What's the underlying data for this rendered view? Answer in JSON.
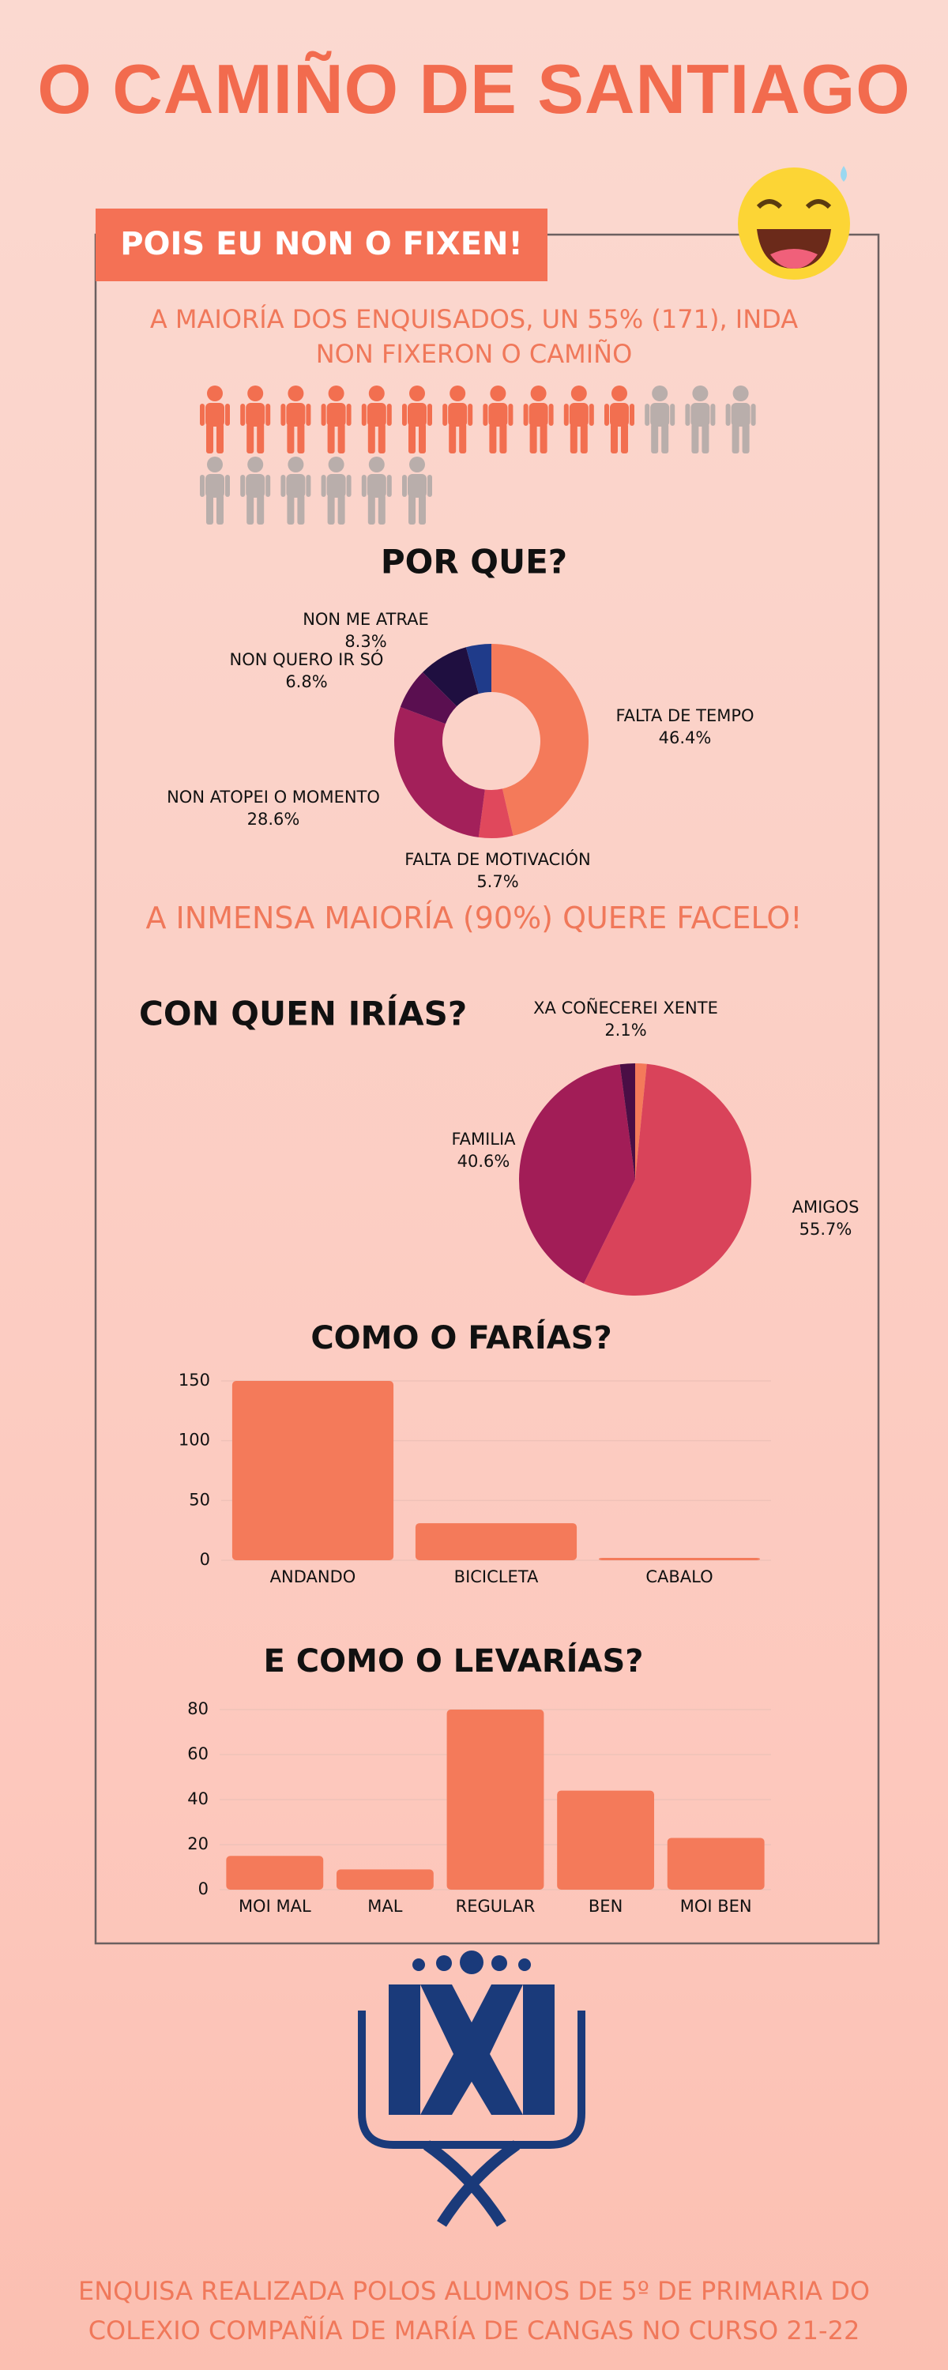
{
  "title": "O CAMIÑO DE SANTIAGO",
  "tab_label": "POIS EU NON O FIXEN!",
  "headline": "A MAIORÍA DOS ENQUISADOS, UN 55% (171), INDA NON FIXERON O CAMIÑO",
  "subheadline": "A INMENSA MAIORÍA (90%) QUERE FACELO!",
  "footer": "ENQUISA REALIZADA POLOS ALUMNOS DE 5º DE PRIMARIA DO COLEXIO COMPAÑÍA DE MARÍA DE CANGAS NO CURSO 21-22",
  "chart_data": [
    {
      "type": "pictogram",
      "values": [
        11,
        9
      ],
      "colors": [
        "#f26f50",
        "#b9aeab"
      ]
    },
    {
      "type": "donut",
      "title": "POR QUE?",
      "categories": [
        "FALTA DE TEMPO",
        "FALTA DE MOTIVACIÓN",
        "NON ATOPEI O MOMENTO",
        "NON QUERO IR SÓ",
        "NON ME ATRAE",
        null
      ],
      "values": [
        46.4,
        5.7,
        28.6,
        6.8,
        8.3,
        4.2
      ],
      "value_labels": [
        "46.4%",
        "5.7%",
        "28.6%",
        "6.8%",
        "8.3%",
        null
      ],
      "colors": [
        "#f47a5a",
        "#e0485c",
        "#a3205a",
        "#5a0f50",
        "#1f0f40",
        "#1f3b8a"
      ]
    },
    {
      "type": "pie",
      "title": "CON QUEN IRÍAS?",
      "categories": [
        null,
        "AMIGOS",
        "FAMILIA",
        "XA COÑECEREI XENTE"
      ],
      "values": [
        1.6,
        55.7,
        40.6,
        2.1
      ],
      "value_labels": [
        null,
        "55.7%",
        "40.6%",
        "2.1%"
      ],
      "colors": [
        "#f47a5a",
        "#d9435a",
        "#a21d57",
        "#4a0e45"
      ]
    },
    {
      "type": "bar",
      "title": "COMO O FARÍAS?",
      "categories": [
        "ANDANDO",
        "BICICLETA",
        "CABALO"
      ],
      "values": [
        150,
        31,
        2
      ],
      "color": "#f47a5a",
      "ylim": [
        0,
        150
      ],
      "yticks": [
        0,
        50,
        100,
        150
      ],
      "grid": true
    },
    {
      "type": "bar",
      "title": "E COMO O LEVARÍAS?",
      "categories": [
        "MOI MAL",
        "MAL",
        "REGULAR",
        "BEN",
        "MOI BEN"
      ],
      "values": [
        15,
        9,
        80,
        44,
        23
      ],
      "color": "#f47a5a",
      "ylim": [
        0,
        80
      ],
      "yticks": [
        0,
        20,
        40,
        60,
        80
      ],
      "grid": true
    }
  ]
}
